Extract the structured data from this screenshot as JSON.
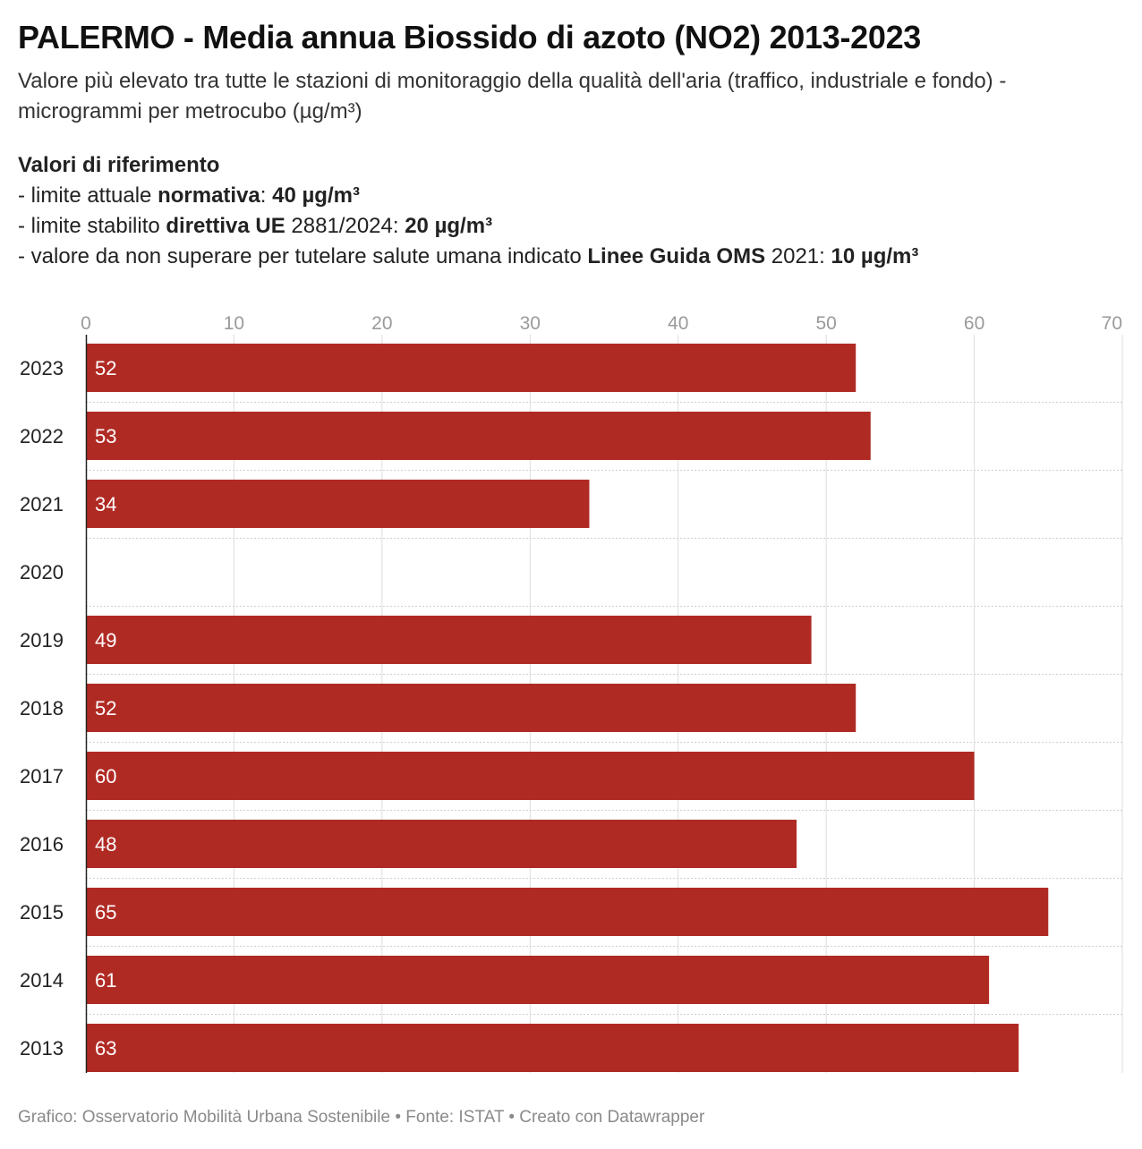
{
  "header": {
    "title": "PALERMO - Media annua Biossido di azoto (NO2) 2013-2023",
    "subtitle": "Valore più elevato tra tutte le stazioni di monitoraggio della qualità dell'aria (traffico, industriale e fondo) - microgrammi per metrocubo (µg/m³)",
    "refs": {
      "heading": "Valori di riferimento",
      "line1": {
        "pre": "- limite attuale ",
        "bold1": "normativa",
        "mid": ": ",
        "bold2": "40 µg/m³"
      },
      "line2": {
        "pre": "- limite stabilito ",
        "bold1": "direttiva UE",
        "mid": " 2881/2024: ",
        "bold2": "20 µg/m³"
      },
      "line3": {
        "pre": "- valore da non superare per tutelare salute umana indicato ",
        "bold1": "Linee Guida OMS",
        "mid": " 2021: ",
        "bold2": "10 µg/m³"
      }
    }
  },
  "colors": {
    "bar": "#b02a24",
    "grid": "#dddddd",
    "axis_text": "#9a9a9a",
    "label_text": "#ffffff"
  },
  "chart_data": {
    "type": "bar",
    "orientation": "horizontal",
    "categories": [
      "2023",
      "2022",
      "2021",
      "2020",
      "2019",
      "2018",
      "2017",
      "2016",
      "2015",
      "2014",
      "2013"
    ],
    "values": [
      52,
      53,
      34,
      null,
      49,
      52,
      60,
      48,
      65,
      61,
      63
    ],
    "data_labels": [
      "52",
      "53",
      "34",
      "",
      "49",
      "52",
      "60",
      "48",
      "65",
      "61",
      "63"
    ],
    "xlim": [
      0,
      70
    ],
    "xticks": [
      0,
      10,
      20,
      30,
      40,
      50,
      60,
      70
    ],
    "x_axis_position": "top",
    "grid": true,
    "legend": "none"
  },
  "footer": {
    "text": "Grafico: Osservatorio Mobilità Urbana Sostenibile • Fonte: ISTAT • Creato con Datawrapper"
  }
}
